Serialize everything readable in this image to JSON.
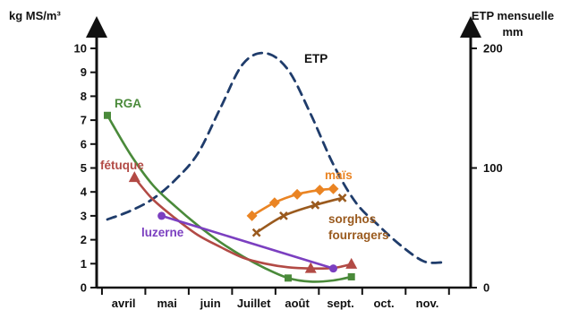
{
  "chart_data": {
    "type": "line",
    "y_left": {
      "label": "kg MS/m³",
      "ylim": [
        0,
        10
      ],
      "ticks": [
        "0",
        "1",
        "2",
        "3",
        "4",
        "5",
        "6",
        "7",
        "8",
        "9",
        "10"
      ]
    },
    "y_right": {
      "label_line1": "ETP mensuelle",
      "label_line2": "mm",
      "ylim": [
        0,
        200
      ],
      "ticks": [
        "0",
        "100",
        "200"
      ]
    },
    "x": {
      "categories": [
        "avril",
        "mai",
        "juin",
        "Juillet",
        "août",
        "sept.",
        "oct.",
        "nov."
      ],
      "xlim": [
        0,
        8.2
      ]
    },
    "grid": false,
    "series": [
      {
        "name": "RGA",
        "color": "#4a8a3a",
        "marker": "square",
        "style": "solid",
        "axis": "left",
        "marker_index": [
          0,
          8
        ],
        "x": [
          0,
          0.5,
          1.0,
          1.5,
          2.0,
          2.5,
          3.0,
          3.5,
          4.0,
          4.5,
          5.0,
          5.4
        ],
        "y": [
          7.2,
          5.6,
          4.3,
          3.4,
          2.6,
          1.9,
          1.3,
          0.8,
          0.4,
          0.25,
          0.3,
          0.45
        ]
      },
      {
        "name": "fétuque",
        "color": "#b24a45",
        "marker": "triangle",
        "style": "solid",
        "axis": "left",
        "marker_index": [
          0,
          8
        ],
        "x": [
          0.6,
          1.0,
          1.5,
          2.0,
          2.5,
          3.0,
          3.5,
          4.0,
          4.5,
          5.0,
          5.4
        ],
        "y": [
          4.6,
          3.7,
          2.9,
          2.2,
          1.7,
          1.25,
          1.0,
          0.85,
          0.8,
          0.82,
          0.98
        ]
      },
      {
        "name": "luzerne",
        "color": "#7b3fc0",
        "marker": "circle",
        "style": "solid",
        "axis": "left",
        "x": [
          1.2,
          5.0
        ],
        "y": [
          3.0,
          0.8
        ]
      },
      {
        "name": "maïs",
        "color": "#ea8423",
        "marker": "diamond",
        "style": "solid",
        "axis": "left",
        "x": [
          3.2,
          3.7,
          4.2,
          4.7,
          5.0
        ],
        "y": [
          3.0,
          3.55,
          3.9,
          4.08,
          4.13
        ]
      },
      {
        "name": "sorghos fourragers",
        "label_line1": "sorghos",
        "label_line2": "fourragers",
        "color": "#9a5a1e",
        "marker": "x",
        "style": "solid",
        "axis": "left",
        "x": [
          3.3,
          3.9,
          4.6,
          5.2
        ],
        "y": [
          2.3,
          3.0,
          3.45,
          3.75
        ]
      },
      {
        "name": "ETP",
        "color": "#1f3c6b",
        "marker": "none",
        "style": "dashed",
        "axis": "right",
        "x": [
          0,
          0.5,
          1.0,
          1.5,
          2.0,
          2.5,
          3.0,
          3.5,
          4.0,
          4.5,
          5.0,
          5.5,
          6.0,
          6.5,
          7.0,
          7.4
        ],
        "y": [
          57,
          64,
          74,
          90,
          112,
          150,
          187,
          196,
          182,
          145,
          103,
          71,
          52,
          35,
          22,
          21
        ]
      }
    ]
  }
}
